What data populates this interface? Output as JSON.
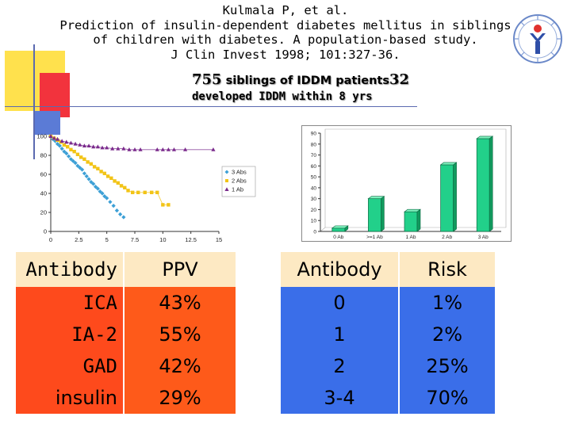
{
  "citation": {
    "line1": "Kulmala P, et al.",
    "line2": "Prediction of insulin-dependent diabetes mellitus in siblings",
    "line3": "of children with diabetes. A population-based study.",
    "line4": "J Clin Invest 1998; 101:327-36."
  },
  "subtitle": {
    "count": "755",
    "middle": " siblings of IDDM patients",
    "developed_count": "32",
    "line2": "developed IDDM within 8 yrs"
  },
  "colors": {
    "deco_yellow": "#ffe14d",
    "deco_red": "#f2333d",
    "deco_blue": "#5b7bd6",
    "table_orange": "#fe4a1c",
    "table_blue": "#3a6ee9",
    "table_header": "#fde9c3",
    "bar_green": "#22d08a"
  },
  "chart_data": [
    {
      "type": "scatter",
      "title": "",
      "xlabel": "",
      "ylabel": "",
      "x_ticks": [
        "0",
        "2.5",
        "5",
        "7.5",
        "10",
        "12.5",
        "15"
      ],
      "y_ticks": [
        "0",
        "20",
        "40",
        "60",
        "80",
        "100"
      ],
      "xlim": [
        0,
        15
      ],
      "ylim": [
        0,
        100
      ],
      "legend": [
        "3 Abs",
        "2 Abs",
        "1 Ab"
      ],
      "series": [
        {
          "name": "3 Abs",
          "color": "#3da0d6",
          "x": [
            0,
            0.2,
            0.4,
            0.6,
            0.8,
            1.0,
            1.2,
            1.4,
            1.6,
            1.8,
            2.0,
            2.2,
            2.4,
            2.6,
            2.8,
            3.0,
            3.2,
            3.4,
            3.6,
            3.8,
            4.0,
            4.2,
            4.4,
            4.6,
            4.8,
            5.0,
            5.3,
            5.6,
            5.9,
            6.2,
            6.5
          ],
          "y": [
            100,
            97,
            95,
            92,
            90,
            87,
            84,
            82,
            79,
            76,
            74,
            72,
            69,
            67,
            65,
            61,
            58,
            55,
            52,
            50,
            47,
            45,
            42,
            40,
            37,
            35,
            31,
            27,
            22,
            18,
            15
          ]
        },
        {
          "name": "2 Abs",
          "color": "#f2c417",
          "x": [
            0,
            0.3,
            0.6,
            0.9,
            1.2,
            1.5,
            1.8,
            2.1,
            2.4,
            2.7,
            3.0,
            3.3,
            3.6,
            3.9,
            4.2,
            4.5,
            4.8,
            5.1,
            5.4,
            5.7,
            6.0,
            6.3,
            6.6,
            6.9,
            7.3,
            7.8,
            8.4,
            9.0,
            9.5,
            10.0,
            10.5
          ],
          "y": [
            100,
            98,
            96,
            94,
            91,
            89,
            86,
            84,
            81,
            78,
            76,
            73,
            71,
            68,
            66,
            63,
            61,
            58,
            56,
            53,
            51,
            48,
            46,
            43,
            41,
            41,
            41,
            41,
            41,
            28,
            28
          ]
        },
        {
          "name": "1 Ab",
          "color": "#7a2a8c",
          "x": [
            0,
            0.3,
            0.6,
            1.0,
            1.4,
            1.8,
            2.2,
            2.6,
            3.0,
            3.4,
            3.8,
            4.2,
            4.6,
            5.0,
            5.5,
            6.0,
            6.5,
            7.0,
            7.5,
            8.0,
            9.5,
            10.0,
            10.5,
            11.0,
            12.0,
            14.5
          ],
          "y": [
            100,
            98,
            97,
            95,
            94,
            93,
            92,
            91,
            90,
            90,
            89,
            89,
            88,
            88,
            87,
            87,
            87,
            86,
            86,
            86,
            86,
            86,
            86,
            86,
            86,
            86
          ]
        }
      ]
    },
    {
      "type": "bar",
      "title": "",
      "xlabel": "",
      "ylabel": "",
      "categories": [
        "0 Ab",
        ">=1 Ab",
        "1 Ab",
        "2 Ab",
        "3 Ab"
      ],
      "values": [
        3,
        30,
        18,
        61,
        85
      ],
      "ylim": [
        0,
        90
      ],
      "y_ticks": [
        "0",
        "10",
        "20",
        "30",
        "40",
        "50",
        "60",
        "70",
        "80",
        "90"
      ]
    }
  ],
  "table_left": {
    "header": {
      "antibody": "Antibody",
      "ppv": "PPV"
    },
    "rows": [
      {
        "antibody": "ICA",
        "ppv": "43%"
      },
      {
        "antibody": "IA-2",
        "ppv": "55%"
      },
      {
        "antibody": "GAD",
        "ppv": "42%"
      },
      {
        "antibody": "insulin",
        "ppv": "29%"
      }
    ]
  },
  "table_right": {
    "header": {
      "antibody": "Antibody",
      "risk": "Risk"
    },
    "rows": [
      {
        "antibody": "0",
        "risk": "1%"
      },
      {
        "antibody": "1",
        "risk": "2%"
      },
      {
        "antibody": "2",
        "risk": "25%"
      },
      {
        "antibody": "3-4",
        "risk": "70%"
      }
    ]
  }
}
